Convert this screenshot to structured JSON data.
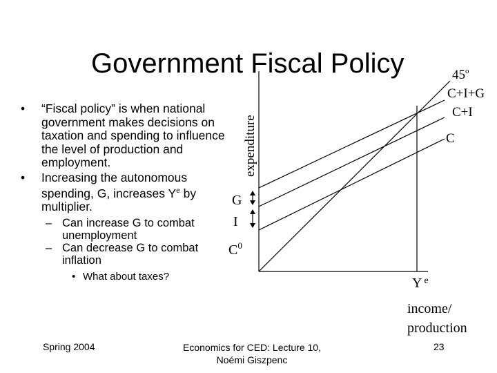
{
  "title": "Government Fiscal Policy",
  "bullets": [
    {
      "text": "“Fiscal policy” is when national government makes decisions on taxation and spending to influence the level of production and employment."
    },
    {
      "text_before_sup": "Increasing the autonomous spending, G, increases Y",
      "sup": "e",
      "text_after_sup": " by multiplier.",
      "sub_bullets": [
        "Can increase G to combat unemployment",
        "Can decrease G to combat inflation"
      ],
      "sub_sub_bullets": [
        "What about taxes?"
      ]
    }
  ],
  "diagram": {
    "y_axis_label": "expenditure",
    "x_axis_label_line1": "income/",
    "x_axis_label_line2": "production",
    "label_45": "45",
    "label_45_sup": "o",
    "line_labels": [
      "C+I+G",
      "C+I",
      "C"
    ],
    "intercept_labels": [
      "G",
      "I"
    ],
    "c0_label": "C",
    "c0_sup": "0",
    "ye_label": "Y",
    "ye_sup": "e"
  },
  "footer": {
    "left": "Spring 2004",
    "center_line1": "Economics for CED: Lecture 10,",
    "center_line2": "Noémi Giszpenc",
    "page_number": "23"
  }
}
